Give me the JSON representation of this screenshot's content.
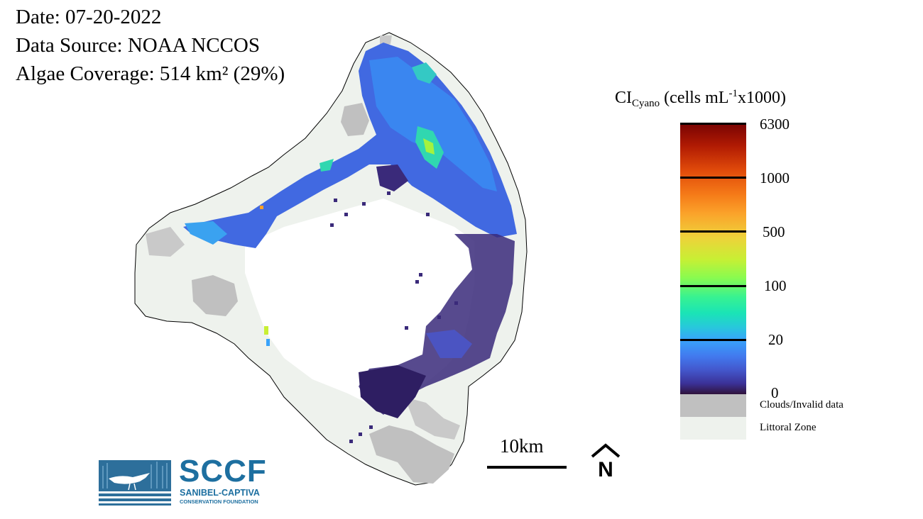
{
  "header": {
    "date_text": "Date: 07-20-2022",
    "source_text": "Data Source: NOAA NCCOS",
    "coverage_text": "Algae Coverage: 514 km² (29%)"
  },
  "legend": {
    "title_main": "CI",
    "title_sub": "Cyano",
    "title_unit_pre": " (cells mL",
    "title_sup": "-1",
    "title_unit_post": "x1000)",
    "ticks": [
      "6300",
      "1000",
      "500",
      "100",
      "20",
      "0"
    ],
    "colormap": [
      "#7a0403",
      "#e04a0a",
      "#fba22a",
      "#c8ef34",
      "#38f291",
      "#27c9da",
      "#38a3fb",
      "#4357cc",
      "#30123b"
    ],
    "clouds_label": "Clouds/Invalid data",
    "clouds_color": "#c0c0c0",
    "littoral_label": "Littoral Zone",
    "littoral_color": "#eef2ed"
  },
  "scale": {
    "label": "10km"
  },
  "north": {
    "label": "N"
  },
  "logo": {
    "name": "SCCF",
    "line1": "SANIBEL-CAPTIVA",
    "line2": "CONSERVATION FOUNDATION",
    "brand_color": "#1d6fa0"
  }
}
